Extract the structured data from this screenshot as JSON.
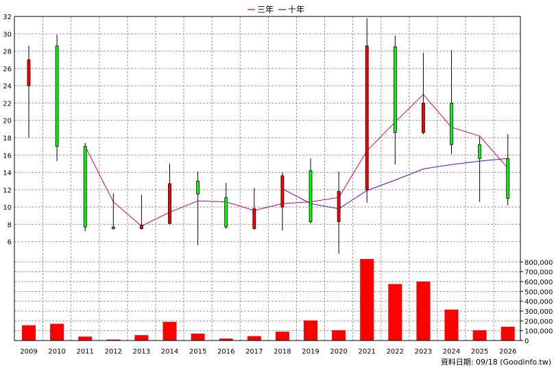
{
  "legend": {
    "ma3_label": "三年",
    "ma10_label": "十年"
  },
  "source": "資料日期: 09/18 (Goodinfo.tw)",
  "colors": {
    "up": "#ff0000",
    "down": "#00ff00",
    "ma3": "#cc0066",
    "ma10": "#6600cc",
    "volume": "#ff0000",
    "grid": "#999999"
  },
  "chart_data": [
    {
      "type": "candlestick",
      "title": "",
      "xlabel": "",
      "ylabel": "",
      "ylim": [
        4,
        32
      ],
      "yticks": [
        6,
        8,
        10,
        12,
        14,
        16,
        18,
        20,
        22,
        24,
        26,
        28,
        30,
        32
      ],
      "grid": true,
      "legend_position": "top-center",
      "categories": [
        "2009",
        "2010",
        "2011",
        "2012",
        "2013",
        "2014",
        "2015",
        "2016",
        "2017",
        "2018",
        "2019",
        "2020",
        "2021",
        "2022",
        "2023",
        "2024",
        "2025",
        "2026"
      ],
      "open": [
        24.0,
        28.6,
        17.0,
        7.7,
        7.5,
        8.1,
        13.0,
        11.1,
        7.5,
        10.0,
        14.2,
        8.3,
        12.0,
        28.5,
        18.6,
        22.0,
        17.2,
        15.6
      ],
      "high": [
        28.6,
        29.9,
        17.4,
        11.6,
        11.4,
        15.0,
        14.1,
        12.8,
        12.2,
        14.0,
        15.6,
        14.1,
        31.8,
        29.8,
        27.8,
        28.1,
        18.1,
        18.4
      ],
      "low": [
        18.0,
        15.3,
        7.2,
        7.4,
        7.4,
        8.0,
        5.6,
        7.5,
        7.4,
        7.3,
        8.1,
        4.6,
        10.5,
        14.9,
        18.4,
        16.1,
        10.6,
        10.2
      ],
      "close": [
        27.0,
        17.0,
        7.7,
        7.5,
        7.9,
        12.7,
        11.5,
        7.7,
        9.8,
        13.6,
        8.3,
        11.8,
        28.6,
        18.6,
        22.0,
        17.2,
        15.6,
        11.0
      ],
      "series": [
        {
          "name": "三年",
          "values": [
            null,
            null,
            17.0,
            10.6,
            7.8,
            9.4,
            10.7,
            10.6,
            9.6,
            10.4,
            10.6,
            11.1,
            16.5,
            19.8,
            23.0,
            19.2,
            18.2,
            14.5
          ]
        },
        {
          "name": "十年",
          "values": [
            null,
            null,
            null,
            null,
            null,
            null,
            null,
            null,
            null,
            12.1,
            10.4,
            9.8,
            11.9,
            13.1,
            14.4,
            14.9,
            15.3,
            15.6
          ]
        }
      ]
    },
    {
      "type": "bar",
      "title": "",
      "xlabel": "",
      "ylabel": "",
      "ylim": [
        0,
        830000
      ],
      "yticks": [
        0,
        100000,
        200000,
        300000,
        400000,
        500000,
        600000,
        700000,
        800000
      ],
      "ytick_labels": [
        "0",
        "100,000",
        "200,000",
        "300,000",
        "400,000",
        "500,000",
        "600,000",
        "700,000",
        "800,000"
      ],
      "categories": [
        "2009",
        "2010",
        "2011",
        "2012",
        "2013",
        "2014",
        "2015",
        "2016",
        "2017",
        "2018",
        "2019",
        "2020",
        "2021",
        "2022",
        "2023",
        "2024",
        "2025",
        "2026"
      ],
      "values": [
        155000,
        170000,
        40000,
        10000,
        55000,
        190000,
        70000,
        20000,
        45000,
        90000,
        205000,
        105000,
        830000,
        575000,
        600000,
        315000,
        105000,
        140000
      ]
    }
  ]
}
